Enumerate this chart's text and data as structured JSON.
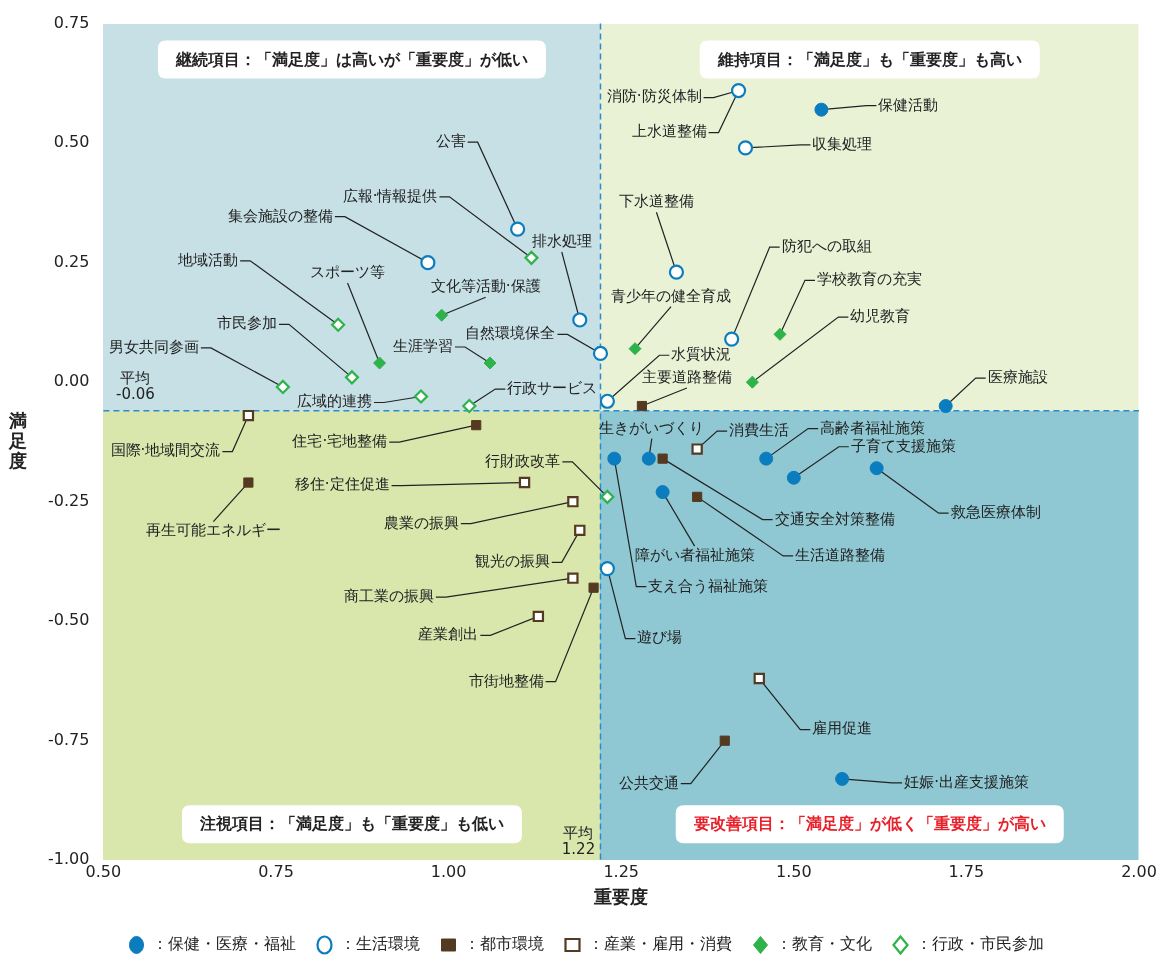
{
  "chart_data": {
    "type": "scatter",
    "xlabel": "重要度",
    "ylabel": "満足度",
    "xlim": [
      0.5,
      2.0
    ],
    "xticks": [
      {
        "value": 0.5,
        "label": "0.50"
      },
      {
        "value": 0.75,
        "label": "0.75"
      },
      {
        "value": 1.0,
        "label": "1.00"
      },
      {
        "value": 1.25,
        "label": "1.25"
      },
      {
        "value": 1.5,
        "label": "1.50"
      },
      {
        "value": 1.75,
        "label": "1.75"
      },
      {
        "value": 2.0,
        "label": "2.00"
      }
    ],
    "ylim": [
      -1.0,
      0.75
    ],
    "yticks": [
      {
        "value": -1.0,
        "label": "-1.00"
      },
      {
        "value": -0.75,
        "label": "-0.75"
      },
      {
        "value": -0.5,
        "label": "-0.50"
      },
      {
        "value": -0.25,
        "label": "-0.25"
      },
      {
        "value": 0,
        "label": "0.00"
      },
      {
        "value": 0.25,
        "label": "0.25"
      },
      {
        "value": 0.5,
        "label": "0.50"
      },
      {
        "value": 0.75,
        "label": "0.75"
      }
    ],
    "grid": false,
    "legend": "bottom",
    "ref_lines": [
      {
        "axis": "y",
        "value": -0.06,
        "label": "平均\n-0.06",
        "color": "#2a8bd0",
        "line_style": "dashed"
      },
      {
        "axis": "x",
        "value": 1.22,
        "label": "平均\n1.22",
        "color": "#2a8bd0",
        "line_style": "dashed"
      }
    ],
    "series": [
      {
        "name": "：保健・医療・福祉",
        "color": "#0b7dbf",
        "marker": "circle",
        "x": [
          1.54,
          1.72,
          1.29,
          1.24,
          1.46,
          1.5,
          1.62,
          1.31,
          1.57
        ],
        "values": [
          0.57,
          -0.05,
          -0.16,
          -0.16,
          -0.16,
          -0.2,
          -0.18,
          -0.23,
          -0.83
        ]
      },
      {
        "name": "：生活環境",
        "color": "#0b7dbf",
        "marker": "circle",
        "x": [
          1.42,
          1.43,
          1.33,
          1.41,
          1.23,
          1.22,
          1.1,
          0.97,
          1.19,
          1.23
        ],
        "values": [
          0.61,
          0.49,
          0.23,
          0.09,
          -0.04,
          0.06,
          0.32,
          0.25,
          0.13,
          -0.39
        ]
      },
      {
        "name": "：都市環境",
        "color": "#553a22",
        "marker": "square",
        "x": [
          1.28,
          1.04,
          0.71,
          1.21,
          1.31,
          1.36,
          1.4
        ],
        "values": [
          -0.05,
          -0.09,
          -0.21,
          -0.43,
          -0.16,
          -0.24,
          -0.75
        ]
      },
      {
        "name": "：産業・雇用・消費",
        "color": "#553a22",
        "marker": "square",
        "x": [
          0.71,
          1.11,
          1.18,
          1.19,
          1.18,
          1.13,
          1.36,
          1.45
        ],
        "values": [
          -0.07,
          -0.21,
          -0.25,
          -0.31,
          -0.41,
          -0.49,
          -0.14,
          -0.62
        ]
      },
      {
        "name": "：教育・文化",
        "color": "#2db34a",
        "marker": "diamond",
        "x": [
          0.99,
          0.9,
          1.06,
          1.27,
          1.48,
          1.44
        ],
        "values": [
          0.14,
          0.04,
          0.04,
          0.07,
          0.1,
          0.0
        ]
      },
      {
        "name": "：行政・市民参加",
        "color": "#2db34a",
        "marker": "diamond",
        "x": [
          1.12,
          0.84,
          0.86,
          0.76,
          0.96,
          1.03,
          1.23
        ],
        "values": [
          0.26,
          0.12,
          0.01,
          -0.01,
          -0.03,
          -0.05,
          -0.24
        ]
      }
    ],
    "annotations": [
      "継続項目：「満足度」は高いが「重要度」が低い",
      "維持項目：「満足度」も「重要度」も高い",
      "注視項目：「満足度」も「重要度」も低い",
      "要改善項目：「満足度」が低く「重要度」が高い",
      {
        "text": "保健活動",
        "x": 1.54,
        "y": 0.57
      },
      {
        "text": "医療施設",
        "x": 1.72,
        "y": -0.05
      },
      {
        "text": "生きがいづくり",
        "x": 1.29,
        "y": -0.16
      },
      {
        "text": "支え合う福祉施策",
        "x": 1.24,
        "y": -0.16
      },
      {
        "text": "高齢者福祉施策",
        "x": 1.46,
        "y": -0.16
      },
      {
        "text": "子育て支援施策",
        "x": 1.5,
        "y": -0.2
      },
      {
        "text": "救急医療体制",
        "x": 1.62,
        "y": -0.18
      },
      {
        "text": "障がい者福祉施策",
        "x": 1.31,
        "y": -0.23
      },
      {
        "text": "妊娠·出産支援施策",
        "x": 1.57,
        "y": -0.83
      },
      {
        "text": "消防·防災体制",
        "x": 1.42,
        "y": 0.61
      },
      {
        "text": "上水道整備",
        "x": 1.42,
        "y": 0.61
      },
      {
        "text": "収集処理",
        "x": 1.43,
        "y": 0.49
      },
      {
        "text": "下水道整備",
        "x": 1.33,
        "y": 0.23
      },
      {
        "text": "防犯への取組",
        "x": 1.41,
        "y": 0.09
      },
      {
        "text": "水質状況",
        "x": 1.23,
        "y": -0.04
      },
      {
        "text": "自然環境保全",
        "x": 1.22,
        "y": 0.06
      },
      {
        "text": "公害",
        "x": 1.1,
        "y": 0.32
      },
      {
        "text": "集会施設の整備",
        "x": 0.97,
        "y": 0.25
      },
      {
        "text": "排水処理",
        "x": 1.19,
        "y": 0.13
      },
      {
        "text": "遊び場",
        "x": 1.23,
        "y": -0.39
      },
      {
        "text": "主要道路整備",
        "x": 1.28,
        "y": -0.05
      },
      {
        "text": "住宅·宅地整備",
        "x": 1.04,
        "y": -0.09
      },
      {
        "text": "再生可能エネルギー",
        "x": 0.71,
        "y": -0.21
      },
      {
        "text": "市街地整備",
        "x": 1.21,
        "y": -0.43
      },
      {
        "text": "交通安全対策整備",
        "x": 1.31,
        "y": -0.16
      },
      {
        "text": "生活道路整備",
        "x": 1.36,
        "y": -0.24
      },
      {
        "text": "公共交通",
        "x": 1.4,
        "y": -0.75
      },
      {
        "text": "国際·地域間交流",
        "x": 0.71,
        "y": -0.07
      },
      {
        "text": "移住·定住促進",
        "x": 1.11,
        "y": -0.21
      },
      {
        "text": "農業の振興",
        "x": 1.18,
        "y": -0.25
      },
      {
        "text": "観光の振興",
        "x": 1.19,
        "y": -0.31
      },
      {
        "text": "商工業の振興",
        "x": 1.18,
        "y": -0.41
      },
      {
        "text": "産業創出",
        "x": 1.13,
        "y": -0.49
      },
      {
        "text": "消費生活",
        "x": 1.36,
        "y": -0.14
      },
      {
        "text": "雇用促進",
        "x": 1.45,
        "y": -0.62
      },
      {
        "text": "文化等活動·保護",
        "x": 0.99,
        "y": 0.14
      },
      {
        "text": "スポーツ等",
        "x": 0.9,
        "y": 0.04
      },
      {
        "text": "生涯学習",
        "x": 1.06,
        "y": 0.04
      },
      {
        "text": "青少年の健全育成",
        "x": 1.27,
        "y": 0.07
      },
      {
        "text": "学校教育の充実",
        "x": 1.48,
        "y": 0.1
      },
      {
        "text": "幼児教育",
        "x": 1.44,
        "y": 0.0
      },
      {
        "text": "広報·情報提供",
        "x": 1.12,
        "y": 0.26
      },
      {
        "text": "地域活動",
        "x": 0.84,
        "y": 0.12
      },
      {
        "text": "市民参加",
        "x": 0.86,
        "y": 0.01
      },
      {
        "text": "男女共同参画",
        "x": 0.76,
        "y": -0.01
      },
      {
        "text": "広域的連携",
        "x": 0.96,
        "y": -0.03
      },
      {
        "text": "行政サービス",
        "x": 1.03,
        "y": -0.05
      },
      {
        "text": "行財政改革",
        "x": 1.23,
        "y": -0.24
      }
    ]
  }
}
